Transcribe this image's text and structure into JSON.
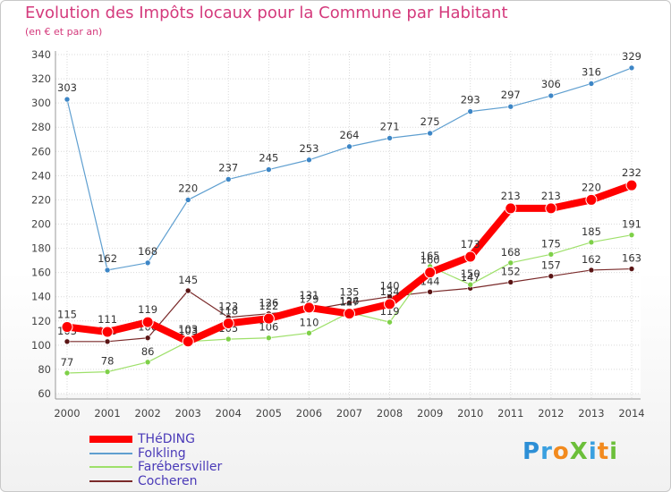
{
  "title": "Evolution des Impôts locaux pour la Commune par Habitant",
  "subtitle": "(en € et par an)",
  "logo": {
    "text": "ProXiti",
    "letters": [
      {
        "ch": "P",
        "color": "#2d8fd6"
      },
      {
        "ch": "r",
        "color": "#3aa0e0"
      },
      {
        "ch": "o",
        "color": "#f28a1e"
      },
      {
        "ch": "X",
        "color": "#6cbf3a"
      },
      {
        "ch": "i",
        "color": "#3aa0e0"
      },
      {
        "ch": "t",
        "color": "#f28a1e"
      },
      {
        "ch": "i",
        "color": "#6cbf3a"
      }
    ]
  },
  "chart_data": {
    "type": "line",
    "title": "Evolution des Impôts locaux pour la Commune par Habitant",
    "subtitle": "(en € et par an)",
    "x": [
      2000,
      2001,
      2002,
      2003,
      2004,
      2005,
      2006,
      2007,
      2008,
      2009,
      2010,
      2011,
      2012,
      2013,
      2014
    ],
    "ylim": [
      60,
      340
    ],
    "yticks": [
      60,
      80,
      100,
      120,
      140,
      160,
      180,
      200,
      220,
      240,
      260,
      280,
      300,
      320,
      340
    ],
    "grid": true,
    "legend_position": "bottom-left",
    "series": [
      {
        "name": "Cocheren",
        "color": "#7a2a2a",
        "marker_color": "#5a1414",
        "values": [
          103,
          103,
          106,
          145,
          123,
          126,
          129,
          135,
          140,
          144,
          147,
          152,
          157,
          162,
          163
        ],
        "labels": [
          "103",
          "103",
          "106",
          "145",
          "123",
          "126",
          "129",
          "135",
          "140",
          "144",
          "147",
          "152",
          "157",
          "162",
          "163"
        ]
      },
      {
        "name": "Farébersviller",
        "color": "#9ee06a",
        "marker_color": "#7ed048",
        "values": [
          77,
          78,
          86,
          103,
          105,
          106,
          110,
          127,
          119,
          165,
          150,
          168,
          175,
          185,
          191
        ],
        "labels": [
          "77",
          "78",
          "86",
          "103",
          "105",
          "106",
          "110",
          "127",
          "119",
          "165",
          "150",
          "168",
          "175",
          "185",
          "191"
        ]
      },
      {
        "name": "Folkling",
        "color": "#5f9fd0",
        "marker_color": "#3d86c6",
        "values": [
          303,
          162,
          168,
          220,
          237,
          245,
          253,
          264,
          271,
          275,
          293,
          297,
          306,
          316,
          329
        ],
        "labels": [
          "303",
          "162",
          "168",
          "220",
          "237",
          "245",
          "253",
          "264",
          "271",
          "275",
          "293",
          "297",
          "306",
          "316",
          "329"
        ]
      },
      {
        "name": "THéDING",
        "color": "#ff0000",
        "marker_color": "#ff0000",
        "values": [
          115,
          111,
          119,
          103,
          118,
          122,
          131,
          126,
          134,
          160,
          173,
          213,
          213,
          220,
          232
        ],
        "labels": [
          "115",
          "111",
          "119",
          "103",
          "118",
          "122",
          "131",
          "126",
          "134",
          "160",
          "173",
          "213",
          "213",
          "220",
          "232"
        ]
      }
    ]
  }
}
